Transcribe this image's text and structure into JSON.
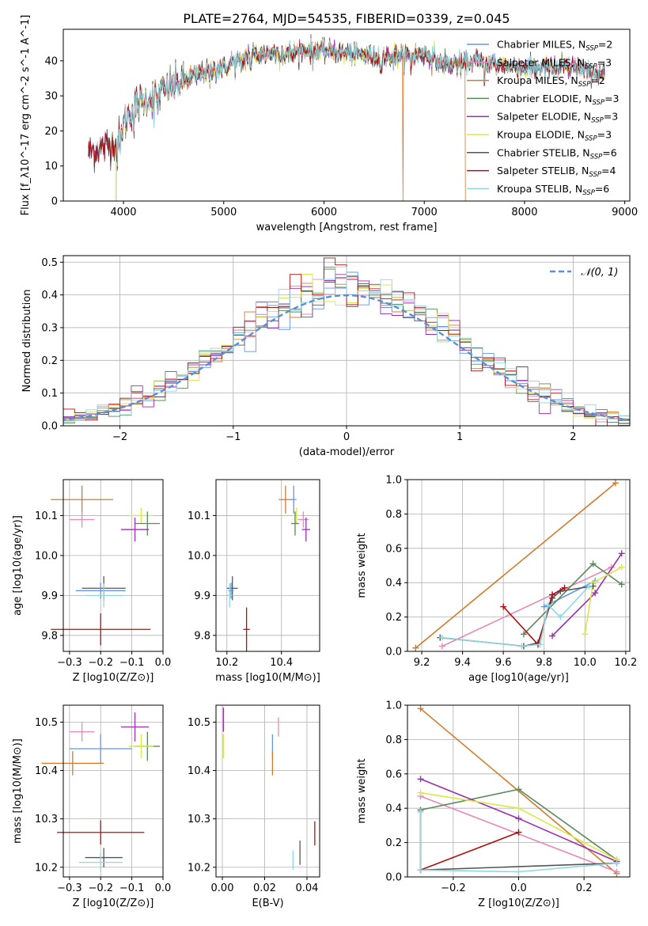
{
  "figure_title": "PLATE=2764, MJD=54535, FIBERID=0339, z=0.045",
  "colors": {
    "Chabrier MILES": "#6495ed",
    "Salpeter MILES": "#e889b6",
    "Kroupa MILES": "#d27a2c",
    "Chabrier ELODIE": "#5a8a5a",
    "Salpeter ELODIE": "#9a2fb0",
    "Kroupa ELODIE": "#d8e84a",
    "Chabrier STELIB": "#555555",
    "Salpeter STELIB": "#b01010",
    "Kroupa STELIB": "#8fd8e0",
    "gaussian": "#5b8fdc"
  },
  "chart_data": [
    {
      "id": "spectrum",
      "type": "line",
      "title": "PLATE=2764, MJD=54535, FIBERID=0339, z=0.045",
      "xlabel": "wavelength [Angstrom, rest frame]",
      "ylabel": "Flux [f_λ10^-17 erg cm^-2 s^-1 A^-1]",
      "xlim": [
        3400,
        9050
      ],
      "ylim": [
        0,
        49
      ],
      "xticks": [
        4000,
        5000,
        6000,
        7000,
        8000,
        9000
      ],
      "yticks": [
        0,
        10,
        20,
        30,
        40
      ],
      "legend_position": "top-right",
      "legend": [
        {
          "name": "Chabrier MILES",
          "nssp": "2"
        },
        {
          "name": "Salpeter MILES",
          "nssp": "3"
        },
        {
          "name": "Kroupa MILES",
          "nssp": "2"
        },
        {
          "name": "Chabrier ELODIE",
          "nssp": "3"
        },
        {
          "name": "Salpeter ELODIE",
          "nssp": "3"
        },
        {
          "name": "Kroupa ELODIE",
          "nssp": "3"
        },
        {
          "name": "Chabrier STELIB",
          "nssp": "6"
        },
        {
          "name": "Salpeter STELIB",
          "nssp": "4"
        },
        {
          "name": "Kroupa STELIB",
          "nssp": "6"
        }
      ],
      "continuum_x": [
        3650,
        3750,
        3850,
        3950,
        4000,
        4100,
        4300,
        4500,
        4800,
        5000,
        5200,
        5400,
        5600,
        5800,
        6000,
        6300,
        6600,
        7000,
        7200,
        7400,
        7500,
        7700,
        8000,
        8500,
        8800
      ],
      "continuum_y": [
        14,
        15,
        16,
        17,
        22,
        27,
        30,
        33,
        37,
        38,
        41,
        42,
        42,
        43,
        43,
        42,
        41,
        42,
        39,
        39,
        40,
        39,
        38,
        38,
        36
      ],
      "drop_edges": [
        {
          "series": "Kroupa ELODIE",
          "x": 3920,
          "side": "left"
        },
        {
          "series": "Kroupa STELIB",
          "x": 3930,
          "side": "left"
        },
        {
          "series": "Kroupa MILES",
          "x": 6790,
          "side": "notch"
        },
        {
          "series": "Kroupa MILES",
          "x": 7410,
          "side": "right"
        }
      ]
    },
    {
      "id": "residuals",
      "type": "histogram",
      "xlabel": "(data-model)/error",
      "ylabel": "Normed distribution",
      "xlim": [
        -2.5,
        2.5
      ],
      "ylim": [
        0,
        0.52
      ],
      "xticks": [
        -2,
        -1,
        0,
        1,
        2
      ],
      "yticks": [
        0.0,
        0.1,
        0.2,
        0.3,
        0.4,
        0.5
      ],
      "bin_width": 0.1,
      "legend_position": "top-right",
      "reference_label": "𝒩(0, 1)"
    },
    {
      "id": "age_vs_Z",
      "type": "errorbar",
      "xlabel": "Z [log10(Z/Z⊙)]",
      "ylabel": "age  [log10(age/yr)]",
      "xlim": [
        -0.32,
        0.0
      ],
      "ylim": [
        9.76,
        10.19
      ],
      "xticks": [
        -0.3,
        -0.2,
        -0.1,
        0.0
      ],
      "yticks": [
        9.8,
        9.9,
        10.0,
        10.1
      ],
      "points": [
        {
          "series": "Kroupa MILES",
          "x": -0.26,
          "y": 10.14,
          "xerr": 0.1,
          "yerr": 0.035
        },
        {
          "series": "Salpeter MILES",
          "x": -0.26,
          "y": 10.09,
          "xerr": 0.04,
          "yerr": 0.02
        },
        {
          "series": "Kroupa ELODIE",
          "x": -0.07,
          "y": 10.1,
          "xerr": 0.04,
          "yerr": 0.02
        },
        {
          "series": "Chabrier ELODIE",
          "x": -0.05,
          "y": 10.08,
          "xerr": 0.04,
          "yerr": 0.03
        },
        {
          "series": "Salpeter ELODIE",
          "x": -0.09,
          "y": 10.065,
          "xerr": 0.045,
          "yerr": 0.03
        },
        {
          "series": "Chabrier STELIB",
          "x": -0.19,
          "y": 9.918,
          "xerr": 0.07,
          "yerr": 0.03
        },
        {
          "series": "Chabrier MILES",
          "x": -0.2,
          "y": 9.912,
          "xerr": 0.08,
          "yerr": 0.02
        },
        {
          "series": "Kroupa STELIB",
          "x": -0.19,
          "y": 9.9,
          "xerr": 0.06,
          "yerr": 0.03
        },
        {
          "series": "Salpeter STELIB",
          "x": -0.2,
          "y": 9.815,
          "xerr": 0.16,
          "yerr": 0.04
        }
      ]
    },
    {
      "id": "age_vs_mass",
      "type": "errorbar",
      "xlabel": "mass [log10(M/M⊙)]",
      "ylabel": "",
      "xlim": [
        10.16,
        10.54
      ],
      "ylim": [
        9.76,
        10.19
      ],
      "xticks": [
        10.2,
        10.4
      ],
      "yticks": [
        9.8,
        9.9,
        10.0,
        10.1
      ],
      "points": [
        {
          "series": "Kroupa MILES",
          "x": 10.415,
          "y": 10.14,
          "xerr": 0.025,
          "yerr": 0.035
        },
        {
          "series": "Chabrier MILES",
          "x": 10.445,
          "y": 10.14,
          "xerr": 0.01,
          "yerr": 0.035
        },
        {
          "series": "Salpeter MILES",
          "x": 10.48,
          "y": 10.09,
          "xerr": 0.02,
          "yerr": 0.02
        },
        {
          "series": "Kroupa ELODIE",
          "x": 10.455,
          "y": 10.1,
          "xerr": 0.015,
          "yerr": 0.02
        },
        {
          "series": "Chabrier ELODIE",
          "x": 10.45,
          "y": 10.08,
          "xerr": 0.015,
          "yerr": 0.03
        },
        {
          "series": "Salpeter ELODIE",
          "x": 10.49,
          "y": 10.065,
          "xerr": 0.015,
          "yerr": 0.03
        },
        {
          "series": "Chabrier STELIB",
          "x": 10.22,
          "y": 9.918,
          "xerr": 0.02,
          "yerr": 0.03
        },
        {
          "series": "Chabrier MILES",
          "x": 10.215,
          "y": 9.912,
          "xerr": 0.01,
          "yerr": 0.02
        },
        {
          "series": "Kroupa STELIB",
          "x": 10.21,
          "y": 9.9,
          "xerr": 0.01,
          "yerr": 0.03
        },
        {
          "series": "Salpeter STELIB",
          "x": 10.272,
          "y": 9.815,
          "xerr": 0.012,
          "yerr": 0.055
        }
      ]
    },
    {
      "id": "mass_weight_vs_age",
      "type": "line",
      "xlabel": "age  [log10(age/yr)]",
      "ylabel": "mass weight",
      "xlim": [
        9.13,
        10.22
      ],
      "ylim": [
        0,
        1.0
      ],
      "xticks": [
        9.2,
        9.4,
        9.6,
        9.8,
        10.0,
        10.2
      ],
      "yticks": [
        0.0,
        0.2,
        0.4,
        0.6,
        0.8,
        1.0
      ],
      "series": [
        {
          "series": "Kroupa MILES",
          "x": [
            9.17,
            10.15
          ],
          "y": [
            0.02,
            0.98
          ]
        },
        {
          "series": "Salpeter MILES",
          "x": [
            9.3,
            9.84,
            10.13
          ],
          "y": [
            0.03,
            0.33,
            0.49
          ]
        },
        {
          "series": "Chabrier MILES",
          "x": [
            9.8,
            10.05
          ],
          "y": [
            0.26,
            0.41
          ]
        },
        {
          "series": "Chabrier ELODIE",
          "x": [
            9.7,
            10.04,
            10.18
          ],
          "y": [
            0.1,
            0.51,
            0.39
          ]
        },
        {
          "series": "Salpeter ELODIE",
          "x": [
            9.84,
            10.05,
            10.18
          ],
          "y": [
            0.09,
            0.34,
            0.57
          ]
        },
        {
          "series": "Kroupa ELODIE",
          "x": [
            10.0,
            10.04,
            10.18
          ],
          "y": [
            0.1,
            0.4,
            0.49
          ]
        },
        {
          "series": "Chabrier STELIB",
          "x": [
            9.29,
            9.7,
            9.77,
            9.84,
            9.88,
            10.04
          ],
          "y": [
            0.08,
            0.03,
            0.05,
            0.31,
            0.35,
            0.38
          ]
        },
        {
          "series": "Salpeter STELIB",
          "x": [
            9.6,
            9.77,
            9.84,
            9.9
          ],
          "y": [
            0.26,
            0.04,
            0.33,
            0.37
          ]
        },
        {
          "series": "Kroupa STELIB",
          "x": [
            9.3,
            9.69,
            9.78,
            9.82,
            9.88,
            10.02
          ],
          "y": [
            0.08,
            0.03,
            0.04,
            0.27,
            0.2,
            0.38
          ]
        }
      ]
    },
    {
      "id": "mass_vs_Z",
      "type": "errorbar",
      "xlabel": "Z [log10(Z/Z⊙)]",
      "ylabel": "mass [log10(M/M⊙)]",
      "xlim": [
        -0.32,
        0.0
      ],
      "ylim": [
        10.18,
        10.535
      ],
      "xticks": [
        -0.3,
        -0.2,
        -0.1,
        0.0
      ],
      "yticks": [
        10.2,
        10.3,
        10.4,
        10.5
      ],
      "points": [
        {
          "series": "Salpeter MILES",
          "x": -0.26,
          "y": 10.48,
          "xerr": 0.04,
          "yerr": 0.02
        },
        {
          "series": "Salpeter ELODIE",
          "x": -0.09,
          "y": 10.49,
          "xerr": 0.045,
          "yerr": 0.03
        },
        {
          "series": "Chabrier ELODIE",
          "x": -0.05,
          "y": 10.45,
          "xerr": 0.04,
          "yerr": 0.03
        },
        {
          "series": "Kroupa ELODIE",
          "x": -0.07,
          "y": 10.45,
          "xerr": 0.04,
          "yerr": 0.025
        },
        {
          "series": "Chabrier MILES",
          "x": -0.2,
          "y": 10.445,
          "xerr": 0.1,
          "yerr": 0.03
        },
        {
          "series": "Kroupa MILES",
          "x": -0.29,
          "y": 10.415,
          "xerr": 0.1,
          "yerr": 0.025
        },
        {
          "series": "Salpeter STELIB",
          "x": -0.2,
          "y": 10.272,
          "xerr": 0.14,
          "yerr": 0.025
        },
        {
          "series": "Chabrier STELIB",
          "x": -0.19,
          "y": 10.22,
          "xerr": 0.06,
          "yerr": 0.02
        },
        {
          "series": "Kroupa STELIB",
          "x": -0.2,
          "y": 10.21,
          "xerr": 0.07,
          "yerr": 0.02
        }
      ]
    },
    {
      "id": "mass_vs_EBV",
      "type": "errorbar",
      "xlabel": "E(B-V)",
      "ylabel": "",
      "xlim": [
        -0.003,
        0.046
      ],
      "ylim": [
        10.18,
        10.535
      ],
      "xticks": [
        0.0,
        0.02,
        0.04
      ],
      "yticks": [
        10.2,
        10.3,
        10.4,
        10.5
      ],
      "points": [
        {
          "series": "Salpeter ELODIE",
          "x": 0.0005,
          "y": 10.505,
          "xerr": 0,
          "yerr": 0.025
        },
        {
          "series": "Kroupa ELODIE",
          "x": 0.0005,
          "y": 10.45,
          "xerr": 0,
          "yerr": 0.025
        },
        {
          "series": "Salpeter MILES",
          "x": 0.0265,
          "y": 10.49,
          "xerr": 0,
          "yerr": 0.02
        },
        {
          "series": "Chabrier MILES",
          "x": 0.0237,
          "y": 10.45,
          "xerr": 0,
          "yerr": 0.025
        },
        {
          "series": "Kroupa MILES",
          "x": 0.0237,
          "y": 10.415,
          "xerr": 0,
          "yerr": 0.025
        },
        {
          "series": "Salpeter STELIB",
          "x": 0.0437,
          "y": 10.27,
          "xerr": 0,
          "yerr": 0.025
        },
        {
          "series": "Chabrier STELIB",
          "x": 0.0367,
          "y": 10.23,
          "xerr": 0,
          "yerr": 0.025
        },
        {
          "series": "Kroupa STELIB",
          "x": 0.0334,
          "y": 10.215,
          "xerr": 0,
          "yerr": 0.02
        }
      ]
    },
    {
      "id": "mass_weight_vs_Z",
      "type": "line",
      "xlabel": "Z [log10(Z/Z⊙)]",
      "ylabel": "mass weight",
      "xlim": [
        -0.34,
        0.34
      ],
      "ylim": [
        0,
        1.0
      ],
      "xticks": [
        -0.2,
        0.0,
        0.2
      ],
      "yticks": [
        0.0,
        0.2,
        0.4,
        0.6,
        0.8,
        1.0
      ],
      "series": [
        {
          "series": "Kroupa MILES",
          "x": [
            -0.3,
            0.3
          ],
          "y": [
            0.98,
            0.02
          ]
        },
        {
          "series": "Salpeter MILES",
          "x": [
            -0.3,
            0.3
          ],
          "y": [
            0.47,
            0.03
          ]
        },
        {
          "series": "Chabrier ELODIE",
          "x": [
            -0.3,
            0.0,
            0.3
          ],
          "y": [
            0.39,
            0.51,
            0.1
          ]
        },
        {
          "series": "Salpeter ELODIE",
          "x": [
            -0.3,
            0.0,
            0.3
          ],
          "y": [
            0.57,
            0.34,
            0.09
          ]
        },
        {
          "series": "Kroupa ELODIE",
          "x": [
            -0.3,
            0.0,
            0.3
          ],
          "y": [
            0.49,
            0.4,
            0.1
          ]
        },
        {
          "series": "Salpeter STELIB",
          "x": [
            -0.3,
            0.0
          ],
          "y": [
            0.04,
            0.26
          ]
        },
        {
          "series": "Chabrier STELIB",
          "x": [
            -0.3,
            -0.3,
            0.3
          ],
          "y": [
            0.38,
            0.04,
            0.08
          ]
        },
        {
          "series": "Kroupa STELIB",
          "x": [
            -0.3,
            -0.3,
            0.0,
            0.3
          ],
          "y": [
            0.38,
            0.04,
            0.03,
            0.08
          ]
        }
      ]
    }
  ]
}
